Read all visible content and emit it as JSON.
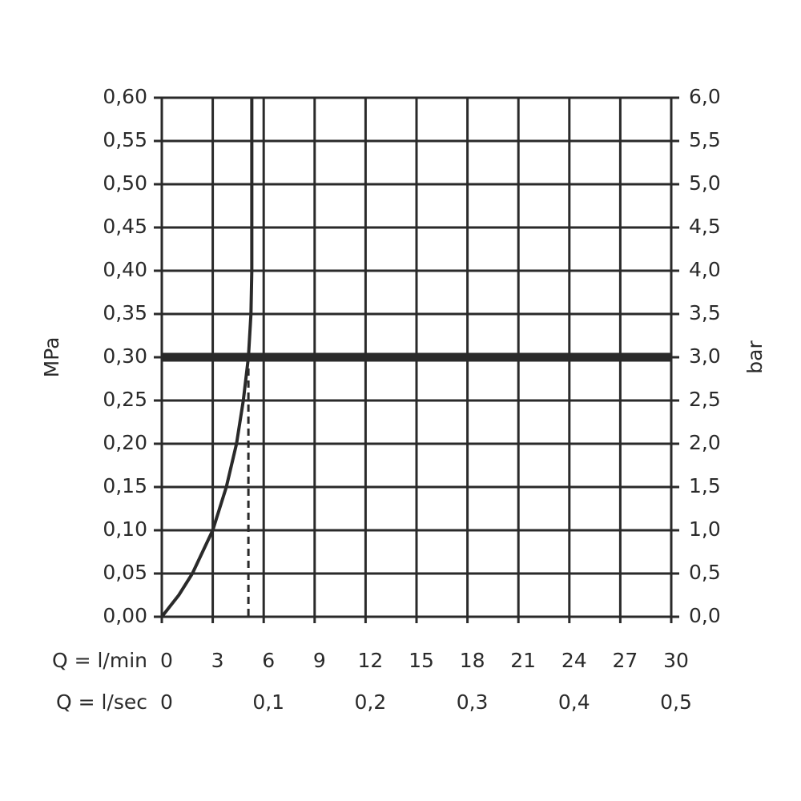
{
  "chart_data": {
    "type": "line",
    "y_label": "MPa",
    "y2_label": "bar",
    "x_label": "Q = l/min",
    "x2_label": "Q = l/sec",
    "x": [
      0,
      1,
      1.8,
      3,
      3.8,
      4.4,
      4.8,
      5.1,
      5.25,
      5.3,
      5.3,
      5.3
    ],
    "series": [
      {
        "color": "#2a2a2a",
        "values": [
          0,
          0.025,
          0.05,
          0.1,
          0.15,
          0.2,
          0.25,
          0.3,
          0.35,
          0.4,
          0.5,
          0.6
        ]
      }
    ],
    "xlim": [
      0,
      30
    ],
    "xticks": [
      0,
      3,
      6,
      9,
      12,
      15,
      18,
      21,
      24,
      27,
      30
    ],
    "x2lim": [
      0,
      0.5
    ],
    "x2ticks": [
      0,
      {
        "value": 0.1,
        "label": "0,1"
      },
      {
        "value": 0.2,
        "label": "0,2"
      },
      {
        "value": 0.3,
        "label": "0,3"
      },
      {
        "value": 0.4,
        "label": "0,4"
      },
      {
        "value": 0.5,
        "label": "0,5"
      }
    ],
    "ylim": [
      0,
      0.6
    ],
    "yticks": [
      {
        "value": 0,
        "label": "0,00"
      },
      {
        "value": 0.05,
        "label": "0,05"
      },
      {
        "value": 0.1,
        "label": "0,10"
      },
      {
        "value": 0.15,
        "label": "0,15"
      },
      {
        "value": 0.2,
        "label": "0,20"
      },
      {
        "value": 0.25,
        "label": "0,25"
      },
      {
        "value": 0.3,
        "label": "0,30"
      },
      {
        "value": 0.35,
        "label": "0,35"
      },
      {
        "value": 0.4,
        "label": "0,40"
      },
      {
        "value": 0.45,
        "label": "0,45"
      },
      {
        "value": 0.5,
        "label": "0,50"
      },
      {
        "value": 0.55,
        "label": "0,55"
      },
      {
        "value": 0.6,
        "label": "0,60"
      }
    ],
    "y2lim": [
      0,
      6
    ],
    "y2ticks": [
      {
        "value": 0,
        "label": "0,0"
      },
      {
        "value": 0.5,
        "label": "0,5"
      },
      {
        "value": 1,
        "label": "1,0"
      },
      {
        "value": 1.5,
        "label": "1,5"
      },
      {
        "value": 2,
        "label": "2,0"
      },
      {
        "value": 2.5,
        "label": "2,5"
      },
      {
        "value": 3,
        "label": "3,0"
      },
      {
        "value": 3.5,
        "label": "3,5"
      },
      {
        "value": 4,
        "label": "4,0"
      },
      {
        "value": 4.5,
        "label": "4,5"
      },
      {
        "value": 5,
        "label": "5,0"
      },
      {
        "value": 5.5,
        "label": "5,5"
      },
      {
        "value": 6,
        "label": "6,0"
      }
    ],
    "reference_y": 0.3,
    "reference_x": 5.1,
    "grid": true
  }
}
